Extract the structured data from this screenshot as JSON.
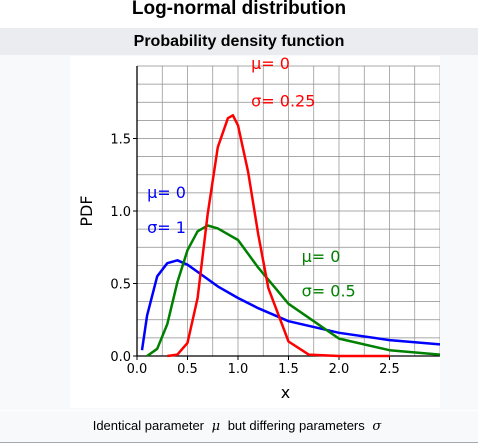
{
  "infobox": {
    "title": "Log-normal distribution",
    "subheader": "Probability density function",
    "caption_pre": "Identical parameter",
    "caption_mu": "μ",
    "caption_mid": "but differing parameters",
    "caption_sigma": "σ"
  },
  "chart_data": {
    "type": "line",
    "xlabel": "x",
    "ylabel": "PDF",
    "xlim": [
      0,
      3.0
    ],
    "ylim": [
      0,
      2.0
    ],
    "xticks": [
      "0.0",
      "0.5",
      "1.0",
      "1.5",
      "2.0",
      "2.5"
    ],
    "yticks": [
      "0.0",
      "0.5",
      "1.0",
      "1.5"
    ],
    "grid": true,
    "series": [
      {
        "mu": 0,
        "sigma": 1.0,
        "color": "#0000ff",
        "labels": [
          "μ= 0",
          "σ= 1"
        ],
        "x": [
          0.05,
          0.1,
          0.2,
          0.3,
          0.4,
          0.5,
          0.6,
          0.8,
          1.0,
          1.2,
          1.5,
          2.0,
          2.5,
          3.0
        ],
        "y": [
          0.04,
          0.28,
          0.55,
          0.64,
          0.66,
          0.63,
          0.58,
          0.48,
          0.4,
          0.33,
          0.24,
          0.16,
          0.11,
          0.08
        ]
      },
      {
        "mu": 0,
        "sigma": 0.5,
        "color": "#008000",
        "labels": [
          "μ= 0",
          "σ= 0.5"
        ],
        "x": [
          0.1,
          0.2,
          0.3,
          0.4,
          0.5,
          0.6,
          0.7,
          0.8,
          1.0,
          1.2,
          1.5,
          2.0,
          2.5,
          3.0
        ],
        "y": [
          0.0,
          0.05,
          0.22,
          0.51,
          0.73,
          0.86,
          0.9,
          0.88,
          0.8,
          0.61,
          0.36,
          0.12,
          0.04,
          0.01
        ]
      },
      {
        "mu": 0,
        "sigma": 0.25,
        "color": "#ff0000",
        "labels": [
          "μ= 0",
          "σ= 0.25"
        ],
        "x": [
          0.3,
          0.4,
          0.5,
          0.6,
          0.7,
          0.8,
          0.9,
          0.95,
          1.0,
          1.1,
          1.2,
          1.3,
          1.5,
          1.7,
          2.0,
          2.5
        ],
        "y": [
          0.0,
          0.01,
          0.09,
          0.4,
          0.98,
          1.44,
          1.64,
          1.66,
          1.59,
          1.27,
          0.84,
          0.47,
          0.1,
          0.01,
          0.0,
          0.0
        ]
      }
    ]
  }
}
